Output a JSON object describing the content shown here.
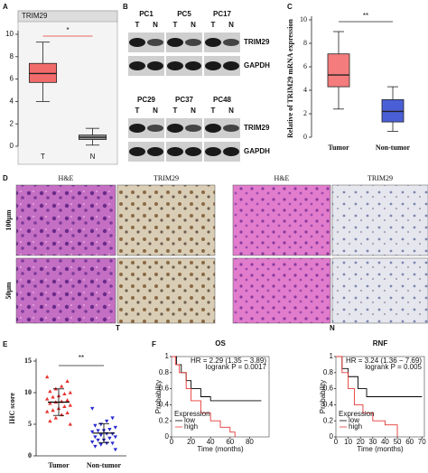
{
  "panel_labels": [
    "A",
    "B",
    "C",
    "D",
    "E",
    "F"
  ],
  "panel_a": {
    "title": "TRIM29",
    "ylim": [
      0,
      10
    ],
    "yticks": [
      0,
      2,
      4,
      6,
      8,
      10
    ],
    "categories": [
      "T",
      "N"
    ],
    "significance": "*",
    "boxes": [
      {
        "color": "#f26b6b",
        "whisker_low": 4,
        "q1": 5.7,
        "median": 6.5,
        "q3": 7.4,
        "whisker_high": 9.3
      },
      {
        "color": "#9a9a9a",
        "whisker_low": 0.1,
        "q1": 0.6,
        "median": 0.8,
        "q3": 1.0,
        "whisker_high": 1.6
      }
    ]
  },
  "panel_b": {
    "sample_rows": [
      [
        "PC1",
        "PC5",
        "PC17"
      ],
      [
        "PC29",
        "PC37",
        "PC48"
      ]
    ],
    "lanes": [
      "T",
      "N"
    ],
    "bands": [
      "TRIM29",
      "GAPDH"
    ]
  },
  "panel_c": {
    "y_label": "Relative of TRIM29 mRNA expression",
    "ylim": [
      0,
      10
    ],
    "yticks": [
      0,
      2,
      4,
      6,
      8,
      10
    ],
    "categories": [
      "Tumor",
      "Non-tumor"
    ],
    "significance": "**",
    "boxes": [
      {
        "color": "#f47c7c",
        "whisker_low": 2.4,
        "q1": 4.3,
        "median": 5.3,
        "q3": 7.1,
        "whisker_high": 9
      },
      {
        "color": "#4a5fd6",
        "whisker_low": 0.5,
        "q1": 1.3,
        "median": 2.2,
        "q3": 3.2,
        "whisker_high": 4.3
      }
    ]
  },
  "panel_d": {
    "column_titles": [
      "H&E",
      "TRIM29",
      "H&E",
      "TRIM29"
    ],
    "row_labels": [
      "100μm",
      "50μm"
    ],
    "group_labels": [
      "T",
      "N"
    ]
  },
  "panel_e": {
    "y_label": "IHC score",
    "ylim": [
      0,
      15
    ],
    "yticks": [
      0,
      5,
      10,
      15
    ],
    "categories": [
      "Tumor",
      "Non-tumor"
    ],
    "significance": "**",
    "groups": [
      {
        "color": "#e8322f",
        "mean": 8.5,
        "sd": 2.1,
        "points": [
          12.5,
          11.8,
          11,
          10.6,
          10.2,
          10,
          9.8,
          9.5,
          9.3,
          9,
          8.8,
          8.6,
          8.5,
          8.3,
          8,
          7.8,
          7.5,
          7.2,
          7,
          6.8,
          6.5,
          6,
          5.5,
          5
        ]
      },
      {
        "color": "#2a2ad0",
        "mean": 3.6,
        "sd": 1.5,
        "points": [
          7.5,
          6,
          5.5,
          5,
          4.8,
          4.5,
          4.2,
          4,
          4,
          3.8,
          3.5,
          3.5,
          3.3,
          3,
          3,
          2.8,
          2.5,
          2.5,
          2.2,
          2,
          2,
          1.8,
          1.5,
          1
        ]
      }
    ]
  },
  "panel_f": [
    {
      "title": "OS",
      "stats": [
        "HR = 2.29 (1.35 − 3.89)",
        "logrank P = 0.0017"
      ],
      "x_label": "Time (months)",
      "y_label": "Probability",
      "legend_title": "Expression",
      "xlim": [
        0,
        100
      ],
      "xticks": [
        0,
        20,
        40,
        60,
        80
      ],
      "ylim": [
        0,
        1
      ],
      "yticks": [
        0,
        0.2,
        0.4,
        0.6,
        0.8,
        1
      ],
      "series": [
        {
          "name": "low",
          "color": "#000000",
          "x": [
            0,
            5,
            10,
            15,
            20,
            30,
            40,
            92
          ],
          "values": [
            1,
            0.9,
            0.8,
            0.7,
            0.6,
            0.5,
            0.45,
            0.45
          ]
        },
        {
          "name": "high",
          "color": "#e53935",
          "x": [
            0,
            4,
            8,
            15,
            20,
            30,
            40,
            50,
            60,
            65
          ],
          "values": [
            1,
            0.9,
            0.8,
            0.6,
            0.45,
            0.3,
            0.2,
            0.12,
            0.06,
            0
          ]
        }
      ]
    },
    {
      "title": "RNF",
      "stats": [
        "HR = 3.24 (1.36 − 7.69)",
        "logrank P = 0.005"
      ],
      "x_label": "Time (months)",
      "y_label": "Probability",
      "legend_title": "Expression",
      "xlim": [
        0,
        72
      ],
      "xticks": [
        0,
        10,
        20,
        30,
        40,
        50,
        60,
        70
      ],
      "ylim": [
        0,
        1
      ],
      "yticks": [
        0,
        0.2,
        0.4,
        0.6,
        0.8,
        1
      ],
      "series": [
        {
          "name": "low",
          "color": "#000000",
          "x": [
            0,
            5,
            10,
            18,
            25,
            70
          ],
          "values": [
            1,
            0.85,
            0.75,
            0.6,
            0.5,
            0.5
          ]
        },
        {
          "name": "high",
          "color": "#e53935",
          "x": [
            0,
            5,
            10,
            15,
            22,
            30,
            40,
            50
          ],
          "values": [
            1,
            0.8,
            0.6,
            0.4,
            0.3,
            0.2,
            0.15,
            0
          ]
        }
      ]
    }
  ]
}
